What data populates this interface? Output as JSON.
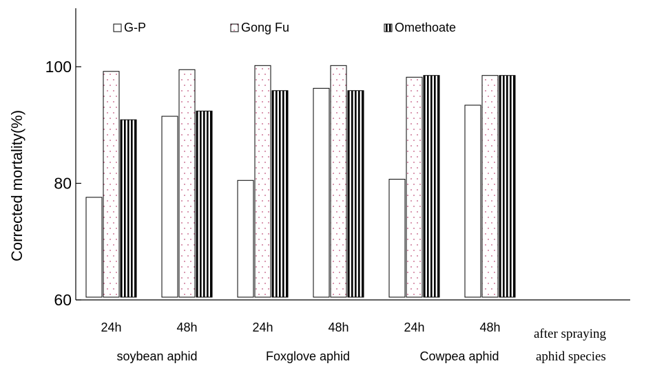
{
  "chart_data": {
    "type": "bar",
    "ylabel": "Corrected mortality(%)",
    "ylim": [
      60,
      110
    ],
    "yticks": [
      60,
      80,
      100
    ],
    "grid": false,
    "legend_position": "top",
    "categories": [
      "24h",
      "48h",
      "24h",
      "48h",
      "24h",
      "48h"
    ],
    "group_labels": [
      "soybean aphid",
      "Foxglove aphid",
      "Cowpea aphid"
    ],
    "x_axis_caption": "after spraying",
    "group_axis_caption": "aphid species",
    "series": [
      {
        "name": "G-P",
        "pattern": "blank",
        "values": [
          77.6,
          91.5,
          80.5,
          96.3,
          80.7,
          93.4
        ]
      },
      {
        "name": "Gong Fu",
        "pattern": "dots",
        "values": [
          99.2,
          99.5,
          100.2,
          100.2,
          98.2,
          98.5
        ]
      },
      {
        "name": "Omethoate",
        "pattern": "vertical-stripes",
        "values": [
          90.9,
          92.4,
          95.9,
          95.9,
          98.5,
          98.5
        ]
      }
    ]
  }
}
